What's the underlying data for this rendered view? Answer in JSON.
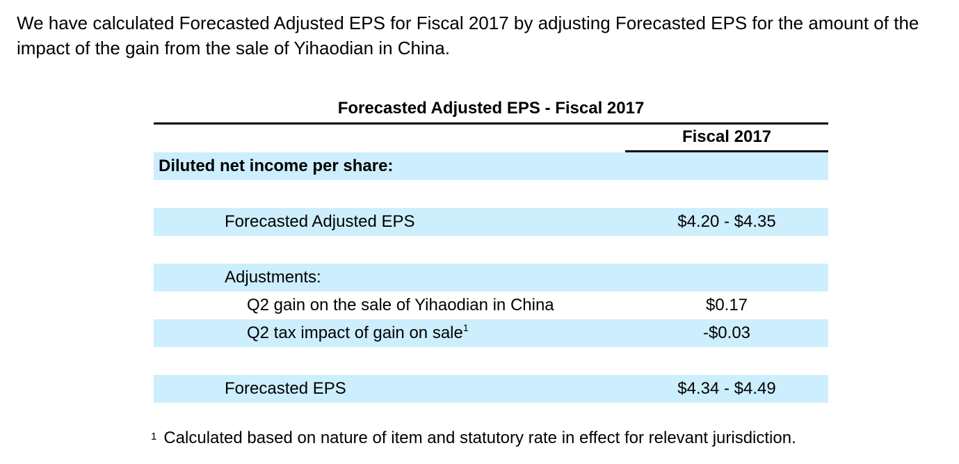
{
  "intro_text": "We have calculated Forecasted Adjusted EPS for Fiscal 2017 by adjusting Forecasted EPS for the amount of the impact of the gain from the sale of Yihaodian in China.",
  "table": {
    "title": "Forecasted Adjusted EPS - Fiscal 2017",
    "column_header": "Fiscal 2017",
    "rows": [
      {
        "label": "Diluted net income per share:",
        "value": "",
        "sup": ""
      },
      {
        "label": "",
        "value": "",
        "sup": ""
      },
      {
        "label": "Forecasted Adjusted EPS",
        "value": "$4.20 - $4.35",
        "sup": ""
      },
      {
        "label": "",
        "value": "",
        "sup": ""
      },
      {
        "label": "Adjustments:",
        "value": "",
        "sup": ""
      },
      {
        "label": "Q2 gain on the sale of Yihaodian in China",
        "value": "$0.17",
        "sup": ""
      },
      {
        "label": "Q2 tax impact of gain on sale",
        "value": "-$0.03",
        "sup": "1"
      },
      {
        "label": "",
        "value": "",
        "sup": ""
      },
      {
        "label": "Forecasted EPS",
        "value": "$4.34 - $4.49",
        "sup": ""
      }
    ]
  },
  "footnote": {
    "mark": "1",
    "text": "Calculated based on nature of item and statutory rate in effect for relevant jurisdiction."
  },
  "colors": {
    "row_shade": "#cdeefd",
    "text": "#000000",
    "rule": "#000000"
  }
}
